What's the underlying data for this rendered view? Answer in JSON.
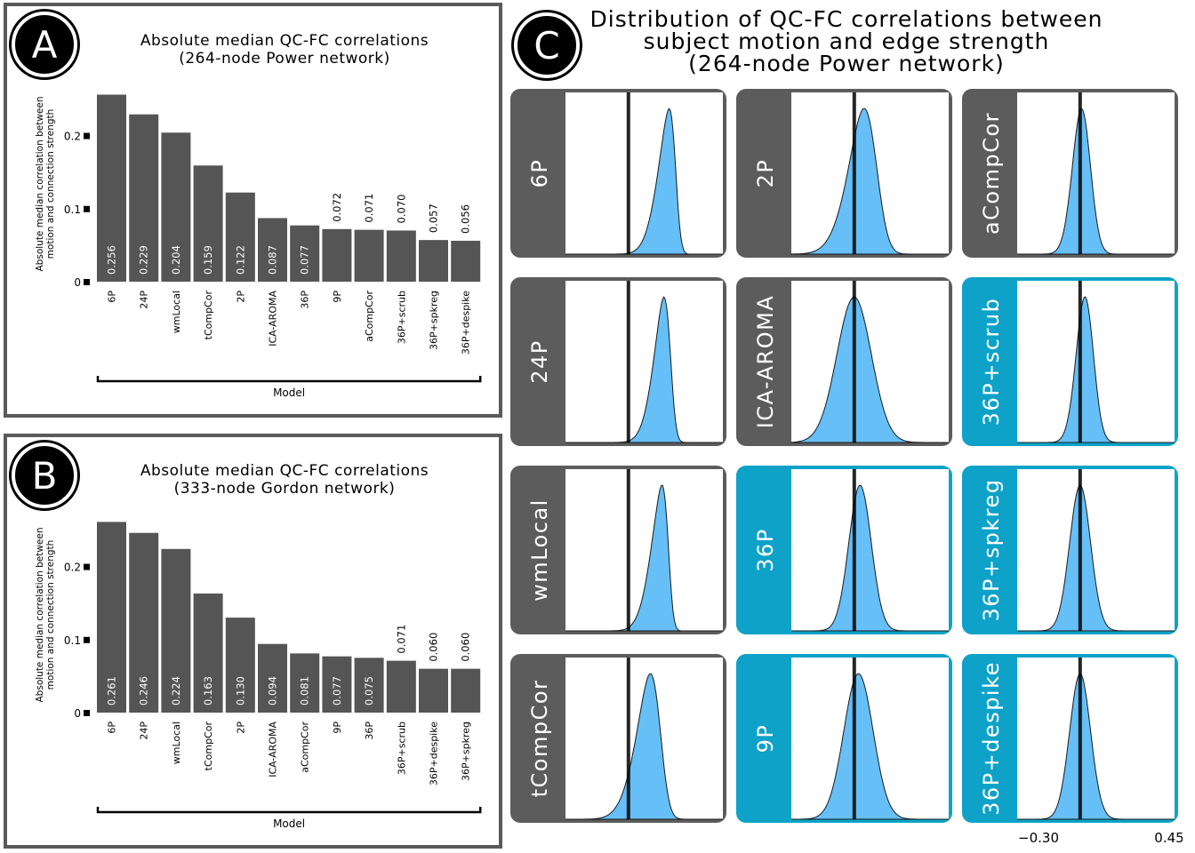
{
  "colors": {
    "bar": "#555555",
    "panel_border": "#5a5a5a",
    "card_gray": "#5c5c5c",
    "card_teal": "#0ea2c8",
    "density_fill": "#66bff7",
    "density_stroke": "#1a1a1a"
  },
  "panels": {
    "A": {
      "badge": "A",
      "title_line1": "Absolute median QC-FC correlations",
      "title_line2": "(264-node Power network)"
    },
    "B": {
      "badge": "B",
      "title_line1": "Absolute median QC-FC correlations",
      "title_line2": "(333-node Gordon network)"
    },
    "C": {
      "badge": "C",
      "title_line1": "Distribution of QC-FC correlations between",
      "title_line2": "subject motion and edge strength",
      "title_line3": "(264-node Power network)"
    }
  },
  "chart_data": [
    {
      "type": "bar",
      "title": "Absolute median QC-FC correlations (264-node Power network)",
      "ylabel": "Absolute median correlation between motion and connection strength",
      "xlabel": "Model",
      "ylim": [
        0,
        0.27
      ],
      "yticks": [
        0,
        0.1,
        0.2
      ],
      "ytick_labels": [
        "0",
        "0.1",
        "0.2"
      ],
      "categories": [
        "6P",
        "24P",
        "wmLocal",
        "tCompCor",
        "2P",
        "ICA-AROMA",
        "36P",
        "9P",
        "aCompCor",
        "36P+scrub",
        "36P+spkreg",
        "36P+despike"
      ],
      "values": [
        0.256,
        0.229,
        0.204,
        0.159,
        0.122,
        0.087,
        0.077,
        0.072,
        0.071,
        0.07,
        0.057,
        0.056
      ],
      "value_labels": [
        "0.256",
        "0.229",
        "0.204",
        "0.159",
        "0.122",
        "0.087",
        "0.077",
        "0.072",
        "0.071",
        "0.070",
        "0.057",
        "0.056"
      ]
    },
    {
      "type": "bar",
      "title": "Absolute median QC-FC correlations (333-node Gordon network)",
      "ylabel": "Absolute median correlation between motion and connection strength",
      "xlabel": "Model",
      "ylim": [
        0,
        0.27
      ],
      "yticks": [
        0,
        0.1,
        0.2
      ],
      "ytick_labels": [
        "0",
        "0.1",
        "0.2"
      ],
      "categories": [
        "6P",
        "24P",
        "wmLocal",
        "tCompCor",
        "2P",
        "ICA-AROMA",
        "aCompCor",
        "9P",
        "36P",
        "36P+scrub",
        "36P+despike",
        "36P+spkreg"
      ],
      "values": [
        0.261,
        0.246,
        0.224,
        0.163,
        0.13,
        0.094,
        0.081,
        0.077,
        0.075,
        0.071,
        0.06,
        0.06
      ],
      "value_labels": [
        "0.261",
        "0.246",
        "0.224",
        "0.163",
        "0.130",
        "0.094",
        "0.081",
        "0.077",
        "0.075",
        "0.071",
        "0.060",
        "0.060"
      ]
    },
    {
      "type": "area",
      "title": "Distribution of QC-FC correlations between subject motion and edge strength (264-node Power network)",
      "xlim": [
        -0.3,
        0.45
      ],
      "x_tick_labels": [
        "−0.30",
        "0.45"
      ],
      "zero_line": 0,
      "grid": false,
      "panels": [
        {
          "name": "6P",
          "mean": 0.225,
          "sd": 0.07,
          "skew": -3.5,
          "highlight": false
        },
        {
          "name": "2P",
          "mean": 0.1,
          "sd": 0.1,
          "skew": -2.0,
          "highlight": false
        },
        {
          "name": "aCompCor",
          "mean": 0.03,
          "sd": 0.05,
          "skew": -0.8,
          "highlight": false
        },
        {
          "name": "24P",
          "mean": 0.2,
          "sd": 0.065,
          "skew": -3.0,
          "highlight": false
        },
        {
          "name": "ICA-AROMA",
          "mean": 0.03,
          "sd": 0.088,
          "skew": -0.5,
          "highlight": false
        },
        {
          "name": "36P+scrub",
          "mean": 0.045,
          "sd": 0.048,
          "skew": -0.8,
          "highlight": true
        },
        {
          "name": "wmLocal",
          "mean": 0.19,
          "sd": 0.068,
          "skew": -3.5,
          "highlight": false
        },
        {
          "name": "36P",
          "mean": 0.04,
          "sd": 0.055,
          "skew": -0.3,
          "highlight": true
        },
        {
          "name": "36P+spkreg",
          "mean": 0.0,
          "sd": 0.05,
          "skew": 0.0,
          "highlight": true
        },
        {
          "name": "tCompCor",
          "mean": 0.15,
          "sd": 0.09,
          "skew": -2.5,
          "highlight": false
        },
        {
          "name": "9P",
          "mean": 0.02,
          "sd": 0.07,
          "skew": 0.0,
          "highlight": true
        },
        {
          "name": "36P+despike",
          "mean": 0.0,
          "sd": 0.05,
          "skew": 0.0,
          "highlight": true
        }
      ]
    }
  ]
}
